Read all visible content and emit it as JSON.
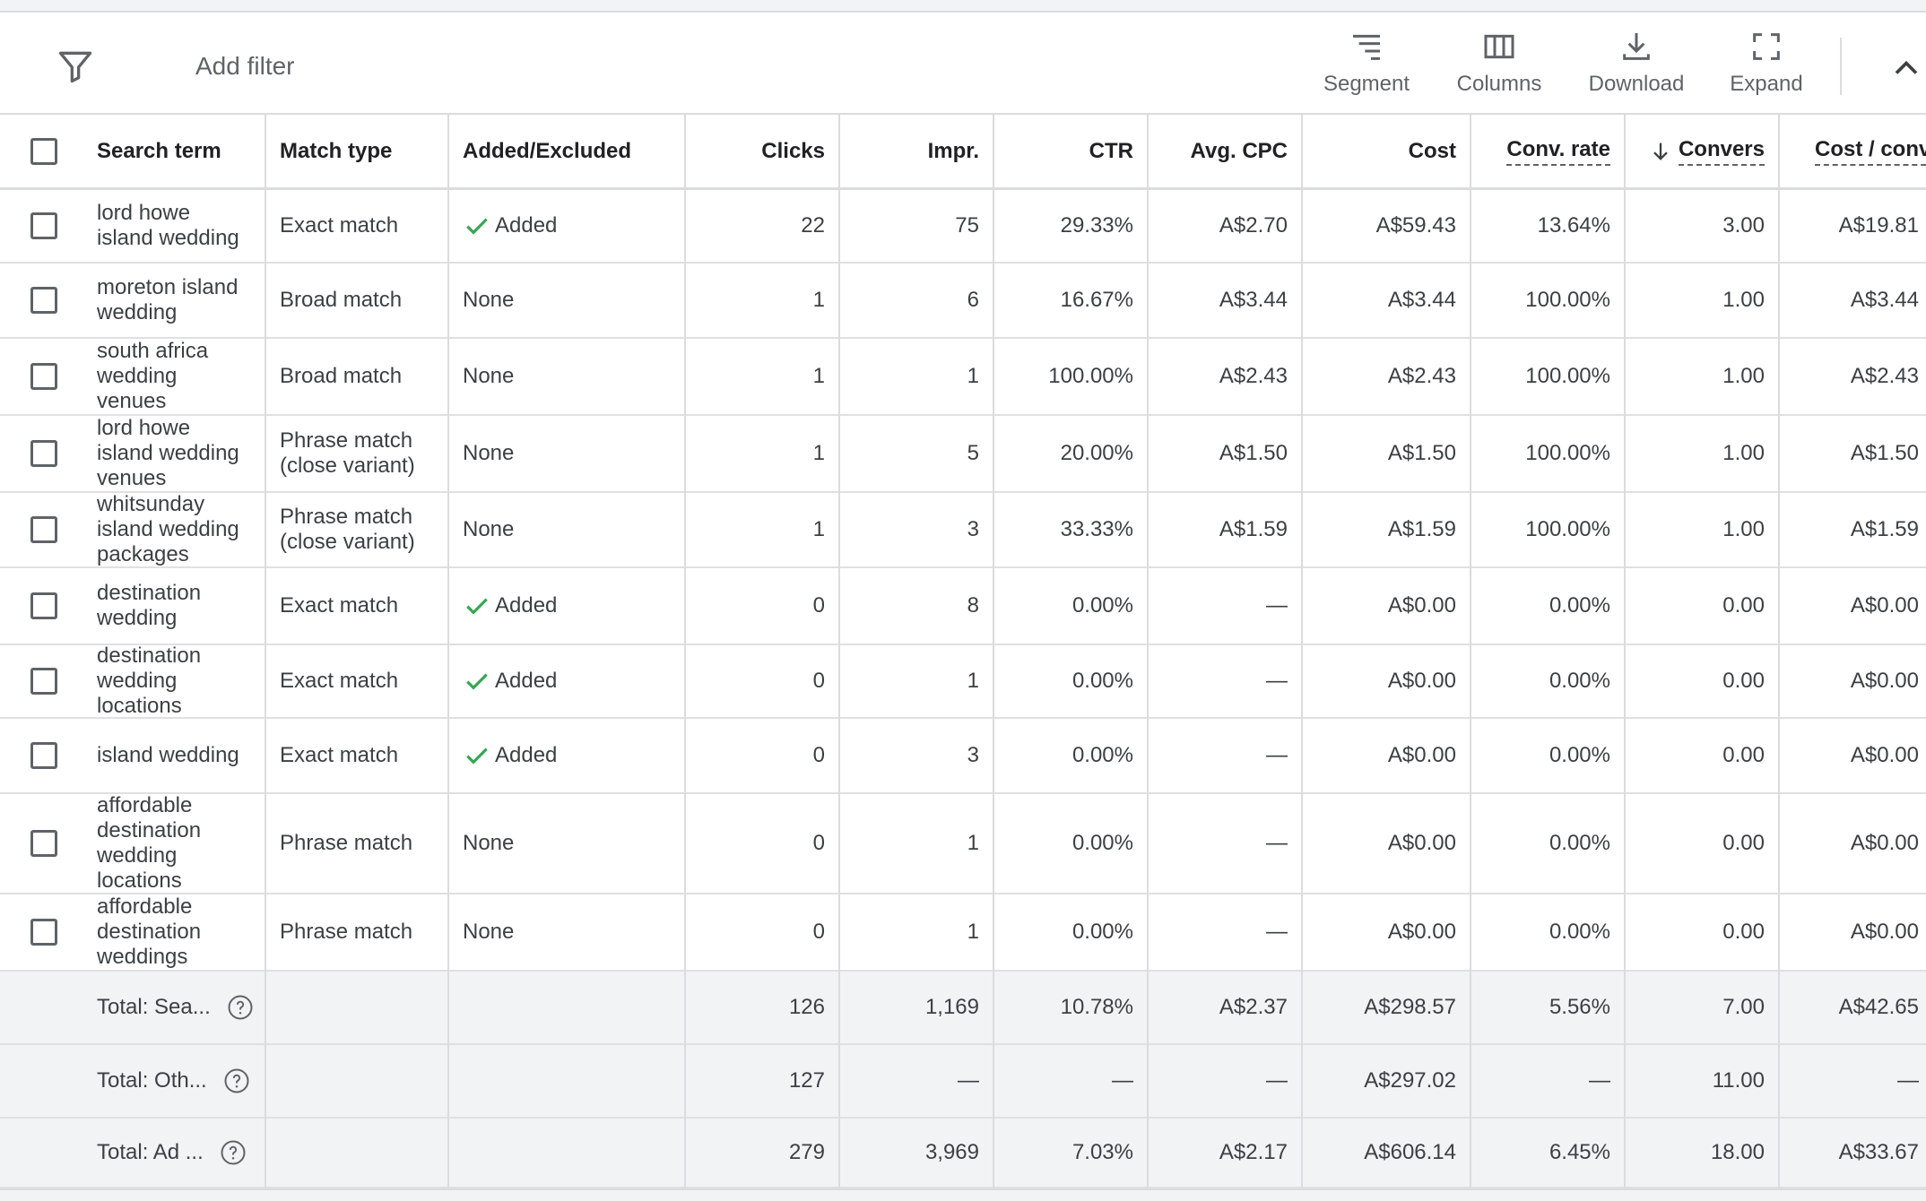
{
  "toolbar": {
    "add_filter": "Add filter",
    "segment": "Segment",
    "columns": "Columns",
    "download": "Download",
    "expand": "Expand"
  },
  "header": {
    "search_term": "Search term",
    "match_type": "Match type",
    "added_excluded": "Added/Excluded",
    "clicks": "Clicks",
    "impr": "Impr.",
    "ctr": "CTR",
    "avg_cpc": "Avg. CPC",
    "cost": "Cost",
    "conv_rate": "Conv. rate",
    "conversions": "Convers",
    "cost_per_conv": "Cost / conv."
  },
  "rows": [
    {
      "term": "lord howe island wedding",
      "match": "Exact match",
      "status": "Added",
      "clicks": "22",
      "impr": "75",
      "ctr": "29.33%",
      "cpc": "A$2.70",
      "cost": "A$59.43",
      "conv_rate": "13.64%",
      "conv": "3.00",
      "cost_conv": "A$19.81"
    },
    {
      "term": "moreton island wedding",
      "match": "Broad match",
      "status": "None",
      "clicks": "1",
      "impr": "6",
      "ctr": "16.67%",
      "cpc": "A$3.44",
      "cost": "A$3.44",
      "conv_rate": "100.00%",
      "conv": "1.00",
      "cost_conv": "A$3.44"
    },
    {
      "term": "south africa wedding venues",
      "match": "Broad match",
      "status": "None",
      "clicks": "1",
      "impr": "1",
      "ctr": "100.00%",
      "cpc": "A$2.43",
      "cost": "A$2.43",
      "conv_rate": "100.00%",
      "conv": "1.00",
      "cost_conv": "A$2.43"
    },
    {
      "term": "lord howe island wedding venues",
      "match": "Phrase match (close variant)",
      "status": "None",
      "clicks": "1",
      "impr": "5",
      "ctr": "20.00%",
      "cpc": "A$1.50",
      "cost": "A$1.50",
      "conv_rate": "100.00%",
      "conv": "1.00",
      "cost_conv": "A$1.50"
    },
    {
      "term": "whitsunday island wedding packages",
      "match": "Phrase match (close variant)",
      "status": "None",
      "clicks": "1",
      "impr": "3",
      "ctr": "33.33%",
      "cpc": "A$1.59",
      "cost": "A$1.59",
      "conv_rate": "100.00%",
      "conv": "1.00",
      "cost_conv": "A$1.59"
    },
    {
      "term": "destination wedding",
      "match": "Exact match",
      "status": "Added",
      "clicks": "0",
      "impr": "8",
      "ctr": "0.00%",
      "cpc": "—",
      "cost": "A$0.00",
      "conv_rate": "0.00%",
      "conv": "0.00",
      "cost_conv": "A$0.00"
    },
    {
      "term": "destination wedding locations",
      "match": "Exact match",
      "status": "Added",
      "clicks": "0",
      "impr": "1",
      "ctr": "0.00%",
      "cpc": "—",
      "cost": "A$0.00",
      "conv_rate": "0.00%",
      "conv": "0.00",
      "cost_conv": "A$0.00"
    },
    {
      "term": "island wedding",
      "match": "Exact match",
      "status": "Added",
      "clicks": "0",
      "impr": "3",
      "ctr": "0.00%",
      "cpc": "—",
      "cost": "A$0.00",
      "conv_rate": "0.00%",
      "conv": "0.00",
      "cost_conv": "A$0.00"
    },
    {
      "term": "affordable destination wedding locations",
      "match": "Phrase match",
      "status": "None",
      "clicks": "0",
      "impr": "1",
      "ctr": "0.00%",
      "cpc": "—",
      "cost": "A$0.00",
      "conv_rate": "0.00%",
      "conv": "0.00",
      "cost_conv": "A$0.00"
    },
    {
      "term": "affordable destination weddings",
      "match": "Phrase match",
      "status": "None",
      "clicks": "0",
      "impr": "1",
      "ctr": "0.00%",
      "cpc": "—",
      "cost": "A$0.00",
      "conv_rate": "0.00%",
      "conv": "0.00",
      "cost_conv": "A$0.00"
    }
  ],
  "totals": [
    {
      "label": "Total: Sea...",
      "clicks": "126",
      "impr": "1,169",
      "ctr": "10.78%",
      "cpc": "A$2.37",
      "cost": "A$298.57",
      "conv_rate": "5.56%",
      "conv": "7.00",
      "cost_conv": "A$42.65"
    },
    {
      "label": "Total: Oth...",
      "clicks": "127",
      "impr": "—",
      "ctr": "—",
      "cpc": "—",
      "cost": "A$297.02",
      "conv_rate": "—",
      "conv": "11.00",
      "cost_conv": "—"
    },
    {
      "label": "Total: Ad ...",
      "clicks": "279",
      "impr": "3,969",
      "ctr": "7.03%",
      "cpc": "A$2.17",
      "cost": "A$606.14",
      "conv_rate": "6.45%",
      "conv": "18.00",
      "cost_conv": "A$33.67"
    }
  ],
  "colors": {
    "added_check": "#34a853",
    "total_bg": "#f1f3f4"
  }
}
